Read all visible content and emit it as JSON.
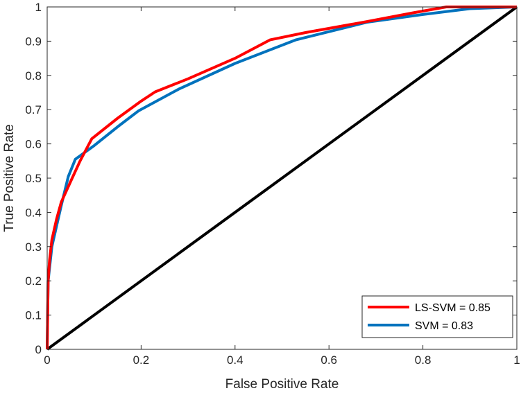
{
  "chart_data": {
    "type": "line",
    "title": "",
    "xlabel": "False Positive Rate",
    "ylabel": "True Positive Rate",
    "xlim": [
      0,
      1
    ],
    "ylim": [
      0,
      1
    ],
    "xticks": [
      0,
      0.2,
      0.4,
      0.6,
      0.8,
      1
    ],
    "xtick_labels": [
      "0",
      "0.2",
      "0.4",
      "0.6",
      "0.8",
      "1"
    ],
    "yticks": [
      0,
      0.1,
      0.2,
      0.3,
      0.4,
      0.5,
      0.6,
      0.7,
      0.8,
      0.9,
      1
    ],
    "ytick_labels": [
      "0",
      "0.1",
      "0.2",
      "0.3",
      "0.4",
      "0.5",
      "0.6",
      "0.7",
      "0.8",
      "0.9",
      "1"
    ],
    "grid": false,
    "legend_position": "bottom-right",
    "series": [
      {
        "name": "LS-SVM = 0.85",
        "color": "#ff0000",
        "x": [
          0,
          0.002,
          0.005,
          0.01,
          0.02,
          0.03,
          0.05,
          0.07,
          0.095,
          0.15,
          0.2,
          0.23,
          0.3,
          0.4,
          0.475,
          0.55,
          0.68,
          0.78,
          0.85,
          0.9,
          1.0
        ],
        "y": [
          0,
          0.2,
          0.26,
          0.32,
          0.38,
          0.43,
          0.49,
          0.55,
          0.615,
          0.675,
          0.725,
          0.752,
          0.79,
          0.85,
          0.904,
          0.925,
          0.957,
          0.983,
          1.0,
          1.0,
          1.0
        ]
      },
      {
        "name": "SVM = 0.83",
        "color": "#0072bd",
        "x": [
          0,
          0.002,
          0.01,
          0.02,
          0.03,
          0.045,
          0.06,
          0.1,
          0.15,
          0.195,
          0.28,
          0.4,
          0.53,
          0.68,
          0.8,
          0.9,
          1.0
        ],
        "y": [
          0,
          0.2,
          0.3,
          0.36,
          0.42,
          0.505,
          0.555,
          0.595,
          0.65,
          0.697,
          0.76,
          0.835,
          0.904,
          0.955,
          0.978,
          0.995,
          1.0
        ]
      },
      {
        "name": "",
        "color": "#000000",
        "x": [
          0,
          1
        ],
        "y": [
          0,
          1
        ]
      }
    ]
  }
}
